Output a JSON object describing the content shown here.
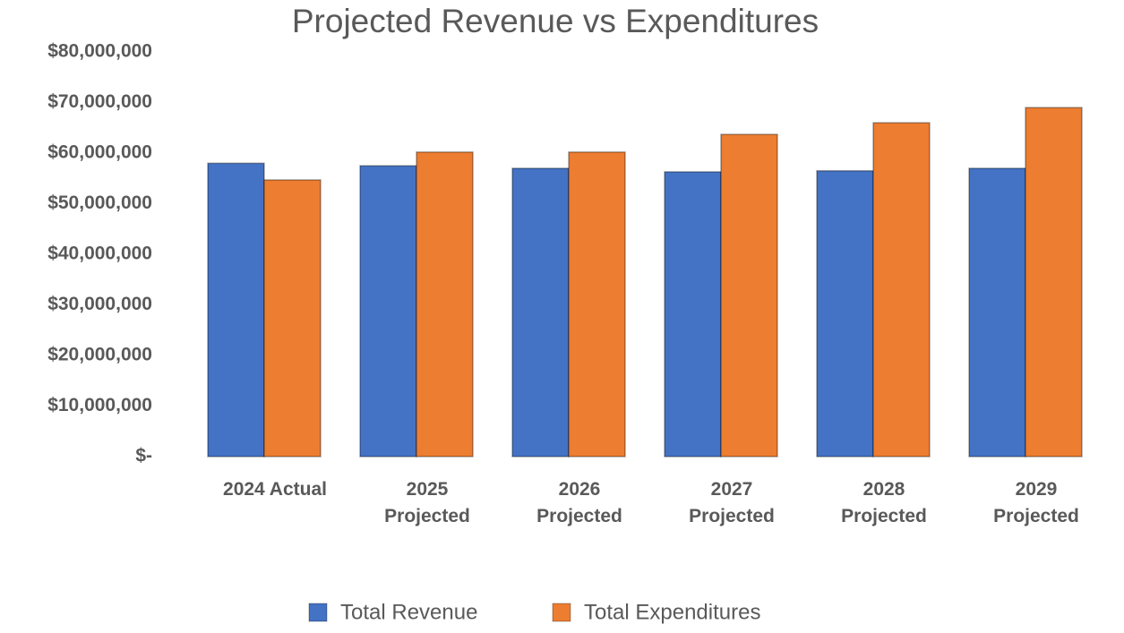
{
  "chart_data": {
    "type": "bar",
    "title": "Projected Revenue vs Expenditures",
    "categories": [
      "2024 Actual",
      "2025 Projected",
      "2026 Projected",
      "2027 Projected",
      "2028 Projected",
      "2029 Projected"
    ],
    "series": [
      {
        "name": "Total Revenue",
        "color": "#4472c4",
        "values": [
          58000000,
          57500000,
          57000000,
          56300000,
          56500000,
          57000000
        ]
      },
      {
        "name": "Total Expenditures",
        "color": "#ed7d31",
        "values": [
          54700000,
          60200000,
          60200000,
          63700000,
          66000000,
          69000000
        ]
      }
    ],
    "ylim": [
      0,
      80000000
    ],
    "yticks": [
      {
        "value": 0,
        "label": "$-"
      },
      {
        "value": 10000000,
        "label": "$10,000,000"
      },
      {
        "value": 20000000,
        "label": "$20,000,000"
      },
      {
        "value": 30000000,
        "label": "$30,000,000"
      },
      {
        "value": 40000000,
        "label": "$40,000,000"
      },
      {
        "value": 50000000,
        "label": "$50,000,000"
      },
      {
        "value": 60000000,
        "label": "$60,000,000"
      },
      {
        "value": 70000000,
        "label": "$70,000,000"
      },
      {
        "value": 80000000,
        "label": "$80,000,000"
      }
    ],
    "grid": false,
    "legend": "bottom"
  }
}
